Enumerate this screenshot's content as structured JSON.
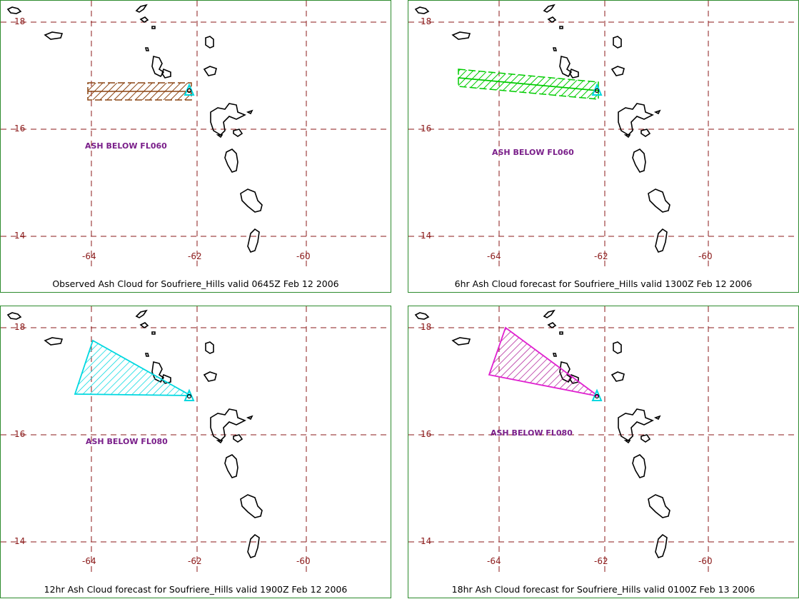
{
  "panels": [
    {
      "caption": "Observed Ash Cloud for Soufriere_Hills valid 0645Z Feb 12 2006",
      "annotation": "ASH BELOW FL060",
      "ash_color": "#8b4513",
      "y_labels": [
        "18",
        "16",
        "14"
      ],
      "x_labels": [
        "-64",
        "-62",
        "-60"
      ]
    },
    {
      "caption": "6hr Ash Cloud forecast for Soufriere_Hills valid 1300Z Feb 12 2006",
      "annotation": "ASH BELOW FL060",
      "ash_color": "#00cc00",
      "y_labels": [
        "18",
        "16",
        "14"
      ],
      "x_labels": [
        "-64",
        "-62",
        "-60"
      ]
    },
    {
      "caption": "12hr Ash Cloud forecast for Soufriere_Hills valid 1900Z Feb 12 2006",
      "annotation": "ASH BELOW FL080",
      "ash_color": "#00d8e0",
      "y_labels": [
        "18",
        "16",
        "14"
      ],
      "x_labels": [
        "-64",
        "-62",
        "-60"
      ]
    },
    {
      "caption": "18hr Ash Cloud forecast for Soufriere_Hills valid 0100Z Feb 13 2006",
      "annotation": "ASH BELOW FL080",
      "ash_color": "#e020d0",
      "y_labels": [
        "18",
        "16",
        "14"
      ],
      "x_labels": [
        "-64",
        "-62",
        "-60"
      ]
    }
  ],
  "colors": {
    "grid": "#8b1a1a",
    "frame": "#2e8b2e",
    "volcano_marker": "#00d8e0",
    "land_outline": "#000000"
  }
}
